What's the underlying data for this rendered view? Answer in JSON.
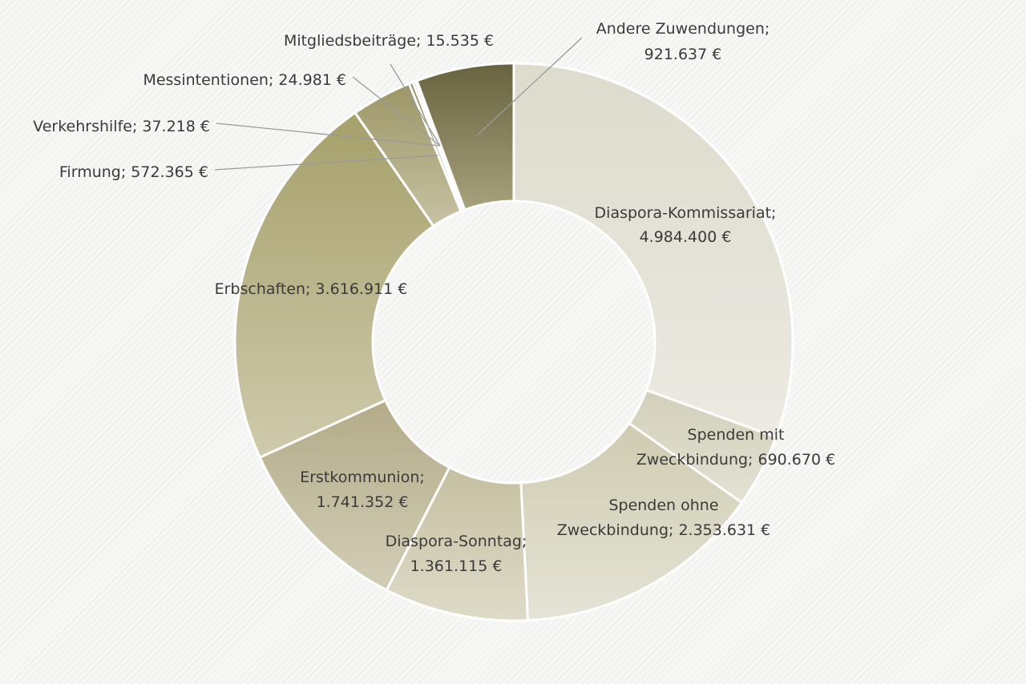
{
  "chart_data": {
    "type": "pie",
    "variant": "donut",
    "legend": "none",
    "slices": [
      {
        "key": "diaspora_kommissariat",
        "label_lines": [
          "Diaspora-Kommissariat;",
          "4.984.400 €"
        ],
        "value": 4984400,
        "colors": [
          "#dddbcc",
          "#eceae2"
        ]
      },
      {
        "key": "spenden_mit",
        "label_lines": [
          "Spenden mit",
          "Zweckbindung; 690.670 €"
        ],
        "value": 690670,
        "colors": [
          "#d2cfb9",
          "#e3e1d3"
        ]
      },
      {
        "key": "spenden_ohne",
        "label_lines": [
          "Spenden ohne",
          "Zweckbindung; 2.353.631 €"
        ],
        "value": 2353631,
        "colors": [
          "#cfcbb1",
          "#e5e3d6"
        ]
      },
      {
        "key": "diaspora_sonntag",
        "label_lines": [
          "Diaspora-Sonntag;",
          "1.361.115 €"
        ],
        "value": 1361115,
        "colors": [
          "#c5bfa0",
          "#dedbc9"
        ]
      },
      {
        "key": "erstkommunion",
        "label_lines": [
          "Erstkommunion;",
          "1.741.352 €"
        ],
        "value": 1741352,
        "colors": [
          "#b3ab88",
          "#d2cdb6"
        ]
      },
      {
        "key": "erbschaften",
        "label_lines": [
          "Erbschaften; 3.616.911 €"
        ],
        "value": 3616911,
        "colors": [
          "#a6a06b",
          "#cfcaac"
        ]
      },
      {
        "key": "firmung",
        "label_lines": [
          "Firmung; 572.365 €"
        ],
        "value": 572365,
        "colors": [
          "#9c9666",
          "#c7c2a3"
        ]
      },
      {
        "key": "verkehrshilfe",
        "label_lines": [
          "Verkehrshilfe; 37.218 €"
        ],
        "value": 37218,
        "colors": [
          "#8a845a",
          "#b0aa86"
        ]
      },
      {
        "key": "messintentionen",
        "label_lines": [
          "Messintentionen; 24.981 €"
        ],
        "value": 24981,
        "colors": [
          "#7b7550",
          "#9f9977"
        ]
      },
      {
        "key": "mitgliedsbeitraege",
        "label_lines": [
          "Mitgliedsbeiträge; 15.535 €"
        ],
        "value": 15535,
        "colors": [
          "#6f6a48",
          "#938d6a"
        ]
      },
      {
        "key": "andere_zuwendungen",
        "label_lines": [
          "Andere Zuwendungen;",
          "921.637 €"
        ],
        "value": 921637,
        "colors": [
          "#68633f",
          "#a7a27c"
        ]
      }
    ]
  }
}
